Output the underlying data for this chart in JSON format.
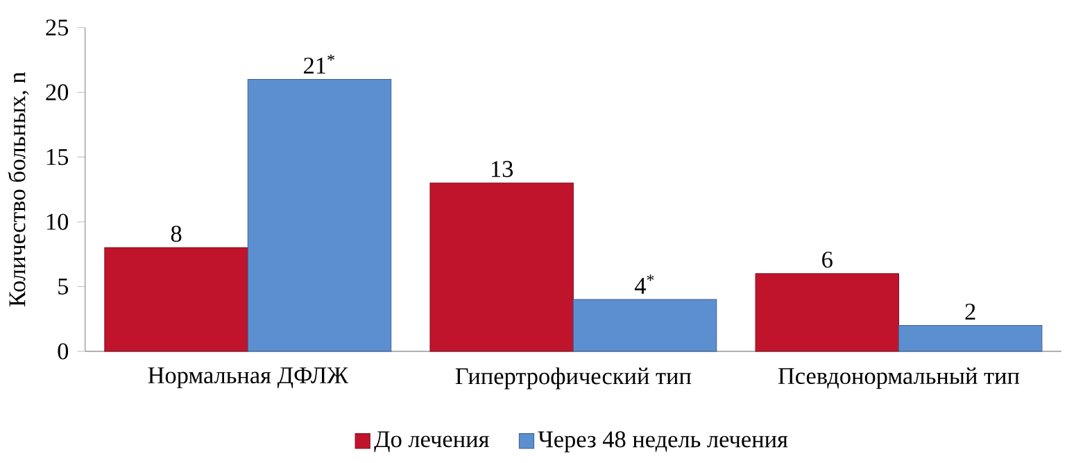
{
  "chart_data": {
    "type": "bar",
    "ylabel": "Количество больных, n",
    "categories": [
      "Нормальная ДФЛЖ",
      "Гипертрофический тип",
      "Псевдонормальный тип"
    ],
    "series": [
      {
        "name": "До лечения",
        "color": "#c0142c",
        "values": [
          8,
          13,
          6
        ],
        "value_labels": [
          "8",
          "13",
          "6"
        ]
      },
      {
        "name": "Через 48 недель лечения",
        "color": "#5b8fd0",
        "values": [
          21,
          4,
          2
        ],
        "value_labels": [
          "21$^{*}$",
          "4$^{*}$",
          "2"
        ]
      }
    ],
    "ylim": [
      0,
      25
    ],
    "yticks": [
      0,
      5,
      10,
      15,
      20,
      25
    ],
    "legend": "bottom"
  }
}
